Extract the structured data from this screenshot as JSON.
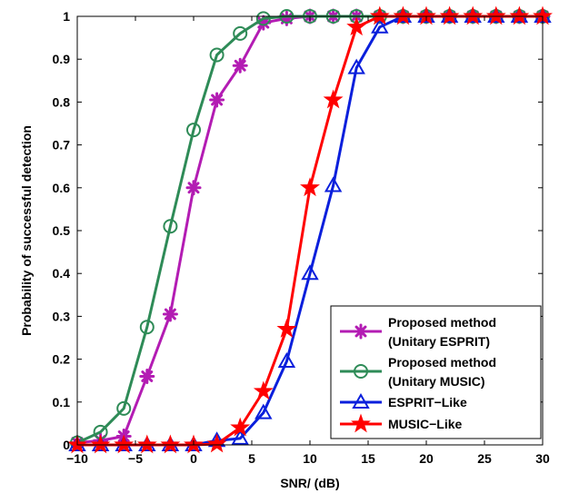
{
  "chart_data": {
    "type": "line",
    "xlabel": "SNR/ (dB)",
    "ylabel": "Probability of successful detection",
    "xlim": [
      -10,
      30
    ],
    "ylim": [
      0,
      1
    ],
    "xticks": [
      -10,
      -5,
      0,
      5,
      10,
      15,
      20,
      25,
      30
    ],
    "xtick_labels": [
      "−10",
      "−5",
      "0",
      "5",
      "10",
      "15",
      "20",
      "25",
      "30"
    ],
    "yticks": [
      0,
      0.1,
      0.2,
      0.3,
      0.4,
      0.5,
      0.6,
      0.7,
      0.8,
      0.9,
      1
    ],
    "ytick_labels": [
      "0",
      "0.1",
      "0.2",
      "0.3",
      "0.4",
      "0.5",
      "0.6",
      "0.7",
      "0.8",
      "0.9",
      "1"
    ],
    "grid": false,
    "legend_position": "bottom-right",
    "x": [
      -10,
      -8,
      -6,
      -4,
      -2,
      0,
      2,
      4,
      6,
      8,
      10,
      12,
      14,
      16,
      18,
      20,
      22,
      24,
      26,
      28,
      30
    ],
    "series": [
      {
        "name_lines": [
          "Proposed method",
          "(Unitary ESPRIT)"
        ],
        "color": "#b31cb3",
        "marker": "asterisk",
        "values": [
          0.005,
          0.01,
          0.02,
          0.16,
          0.305,
          0.6,
          0.805,
          0.885,
          0.985,
          0.995,
          1,
          1,
          1,
          1,
          1,
          1,
          1,
          1,
          1,
          1,
          1
        ]
      },
      {
        "name_lines": [
          "Proposed method",
          " (Unitary MUSIC)"
        ],
        "color": "#2e8b57",
        "marker": "circle",
        "values": [
          0.005,
          0.03,
          0.085,
          0.275,
          0.51,
          0.735,
          0.91,
          0.96,
          0.995,
          1,
          1,
          1,
          1,
          1,
          1,
          1,
          1,
          1,
          1,
          1,
          1
        ]
      },
      {
        "name_lines": [
          "ESPRIT−Like"
        ],
        "color": "#0a1fdc",
        "marker": "triangle",
        "values": [
          0,
          0,
          0,
          0,
          0,
          0,
          0.01,
          0.015,
          0.075,
          0.195,
          0.4,
          0.605,
          0.88,
          0.975,
          1,
          1,
          1,
          1,
          1,
          1,
          1
        ]
      },
      {
        "name_lines": [
          "MUSIC−Like"
        ],
        "color": "#ff0000",
        "marker": "star",
        "values": [
          0,
          0,
          0,
          0,
          0,
          0,
          0.002,
          0.04,
          0.125,
          0.27,
          0.6,
          0.805,
          0.975,
          1,
          1,
          1,
          1,
          1,
          1,
          1,
          1
        ]
      }
    ]
  }
}
